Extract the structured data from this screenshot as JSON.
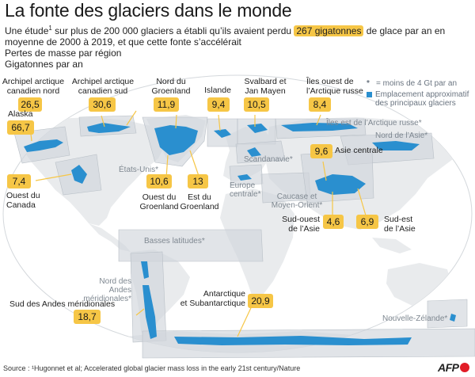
{
  "title": "La fonte des glaciers dans le monde",
  "intro": {
    "before": "Une étude",
    "sup": "1",
    "middle": " sur plus de 200 000 glaciers a établi qu’ils avaient perdu ",
    "highlight": "267 gigatonnes",
    "after": " de glace par an en moyenne de 2000 à 2019, et que cette fonte s’accélérait"
  },
  "subtitle1": "Pertes de masse par région",
  "subtitle2": "Gigatonnes par an",
  "legend": {
    "asterisk_symbol": "*",
    "asterisk_text": " = moins de 4 Gt par an",
    "glacier_text": "Emplacement approximatif des principaux glaciers",
    "glacier_color": "#2a8fcf"
  },
  "colors": {
    "highlight": "#f6c646",
    "ocean": "#ffffff",
    "land": "#e9ebed",
    "region": "#d1d6db",
    "glacier": "#2a8fcf",
    "muted_text": "#7f8891"
  },
  "regions_major": [
    {
      "key": "canada_nord",
      "name": "Archipel arctique\ncanadien sud",
      "value": "30,6"
    },
    {
      "key": "canada_arctique",
      "name": "Archipel arctique\ncanadien nord",
      "value": "26,5"
    },
    {
      "key": "groenland_nord",
      "name": "Nord du\nGroenland",
      "value": "11,9"
    },
    {
      "key": "islande",
      "name": "Islande",
      "value": "9,4"
    },
    {
      "key": "svalbard",
      "name": "Svalbard et\nJan Mayen",
      "value": "10,5"
    },
    {
      "key": "russie_ouest",
      "name": "Îles ouest de\nl’Arctique russe",
      "value": "8,4"
    },
    {
      "key": "alaska",
      "name": "Alaska",
      "value": "66,7"
    },
    {
      "key": "ouest_canada",
      "name": "Ouest du\nCanada",
      "value": "7,4"
    },
    {
      "key": "groenland_ouest",
      "name": "Ouest du\nGroenland",
      "value": "10,6"
    },
    {
      "key": "groenland_est",
      "name": "Est du\nGroenland",
      "value": "13"
    },
    {
      "key": "asie_centrale",
      "name": "Asie centrale",
      "value": "9,6"
    },
    {
      "key": "asie_sud_ouest",
      "name": "Sud-ouest\nde l’Asie",
      "value": "4,6"
    },
    {
      "key": "asie_sud_est",
      "name": "Sud-est\nde l’Asie",
      "value": "6,9"
    },
    {
      "key": "antarctique",
      "name": "Antarctique\net Subantarctique",
      "value": "20,9"
    },
    {
      "key": "andes_sud",
      "name": "Sud des Andes méridionales",
      "value": "18,7"
    }
  ],
  "regions_minor": [
    {
      "key": "russie_est",
      "name": "Îles est de l’Arctique russe*"
    },
    {
      "key": "asie_nord",
      "name": "Nord de l’Asie*"
    },
    {
      "key": "scandinavie",
      "name": "Scandanavie*"
    },
    {
      "key": "etats_unis",
      "name": "États-Unis*"
    },
    {
      "key": "europe_centrale",
      "name": "Europe\ncentrale*"
    },
    {
      "key": "caucase",
      "name": "Caucase et\nMoyen-Orient*"
    },
    {
      "key": "basses_latitudes",
      "name": "Basses latitudes*"
    },
    {
      "key": "andes_nord",
      "name": "Nord des\nAndes méridionales*"
    },
    {
      "key": "nouvelle_zelande",
      "name": "Nouvelle-Zélande*"
    }
  ],
  "source": "Source : ¹Hugonnet et al; Accelerated global glacier mass loss in the early 21st century/Nature",
  "logo": "AFP"
}
